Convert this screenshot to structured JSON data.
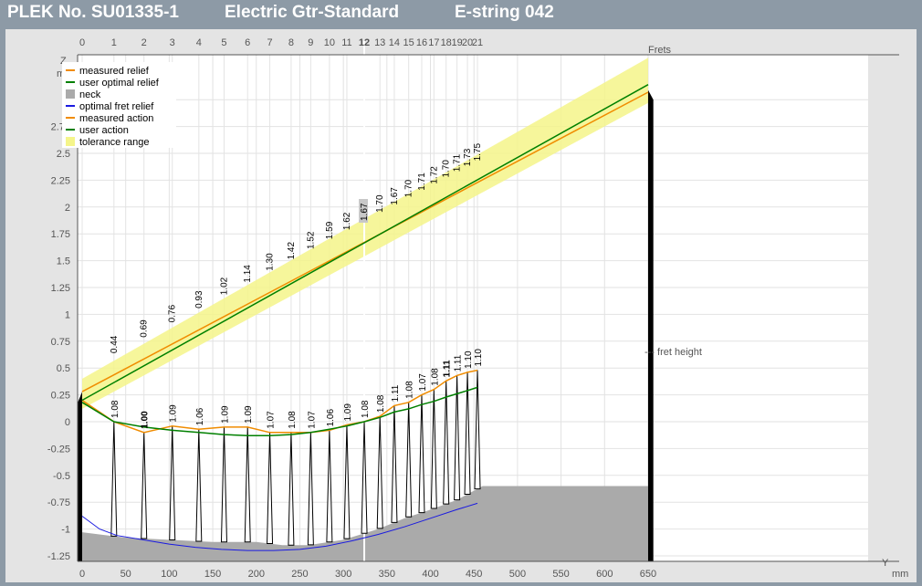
{
  "header": {
    "plek_no": "PLEK No. SU01335-1",
    "instrument": "Electric Gtr-Standard",
    "string": "E-string 042"
  },
  "chart_data": {
    "type": "line",
    "xlabel": "Y",
    "x_unit": "mm",
    "ylabel": "Z",
    "y_unit": "mm",
    "fret_axis_label": "Frets",
    "fret_height_note": "--- fret height",
    "xlim": [
      -10,
      660
    ],
    "ylim": [
      -1.3,
      3.5
    ],
    "x_ticks": [
      0,
      50,
      100,
      150,
      200,
      250,
      300,
      350,
      400,
      450,
      500,
      550,
      600,
      650
    ],
    "y_ticks": [
      -1.25,
      -1,
      -0.75,
      -0.5,
      -0.25,
      0,
      0.25,
      0.5,
      0.75,
      1,
      1.25,
      1.5,
      1.75,
      2,
      2.25,
      2.5,
      2.75,
      3
    ],
    "y_tick_labels": [
      "-1.25",
      "-1",
      "-0.75",
      "-0.5",
      "-0.25",
      "0",
      "0.25",
      "0.5",
      "0.75",
      "1",
      "1.25",
      "1.5",
      "1.75",
      "2",
      "2.25",
      "2.5",
      "2.75",
      "3"
    ],
    "highlight_fret": 12,
    "legend": [
      {
        "label": "measured relief",
        "color": "#f08c00",
        "kind": "line"
      },
      {
        "label": "user optimal relief",
        "color": "#008000",
        "kind": "line"
      },
      {
        "label": "neck",
        "color": "#aaaaaa",
        "kind": "box"
      },
      {
        "label": "optimal fret relief",
        "color": "#1a1ae0",
        "kind": "line"
      },
      {
        "label": "measured action",
        "color": "#f08c00",
        "kind": "line"
      },
      {
        "label": "user action",
        "color": "#008000",
        "kind": "line"
      },
      {
        "label": "tolerance range",
        "color": "#f5f58a",
        "kind": "box"
      }
    ],
    "frets": [
      {
        "fret": 0,
        "pos": 0,
        "relief": 0.2,
        "opt_relief": 0.18,
        "fret_height": "",
        "action": "",
        "bold": false
      },
      {
        "fret": 1,
        "pos": 36.5,
        "relief": 0.0,
        "opt_relief": 0.0,
        "fret_height": "1.08",
        "action": "0.44",
        "bold": false
      },
      {
        "fret": 2,
        "pos": 71,
        "relief": -0.1,
        "opt_relief": -0.05,
        "fret_height": "1.00",
        "action": "0.69",
        "bold": true
      },
      {
        "fret": 3,
        "pos": 103.5,
        "relief": -0.04,
        "opt_relief": -0.08,
        "fret_height": "1.09",
        "action": "0.76",
        "bold": false
      },
      {
        "fret": 4,
        "pos": 134,
        "relief": -0.07,
        "opt_relief": -0.1,
        "fret_height": "1.06",
        "action": "0.93",
        "bold": false
      },
      {
        "fret": 5,
        "pos": 163,
        "relief": -0.05,
        "opt_relief": -0.12,
        "fret_height": "1.09",
        "action": "1.02",
        "bold": false
      },
      {
        "fret": 6,
        "pos": 190,
        "relief": -0.05,
        "opt_relief": -0.13,
        "fret_height": "1.09",
        "action": "1.14",
        "bold": false
      },
      {
        "fret": 7,
        "pos": 215.5,
        "relief": -0.1,
        "opt_relief": -0.13,
        "fret_height": "1.07",
        "action": "1.30",
        "bold": false
      },
      {
        "fret": 8,
        "pos": 240,
        "relief": -0.1,
        "opt_relief": -0.12,
        "fret_height": "1.08",
        "action": "1.42",
        "bold": false
      },
      {
        "fret": 9,
        "pos": 262.5,
        "relief": -0.1,
        "opt_relief": -0.1,
        "fret_height": "1.07",
        "action": "1.52",
        "bold": false
      },
      {
        "fret": 10,
        "pos": 284,
        "relief": -0.08,
        "opt_relief": -0.07,
        "fret_height": "1.06",
        "action": "1.59",
        "bold": false
      },
      {
        "fret": 11,
        "pos": 304,
        "relief": -0.03,
        "opt_relief": -0.04,
        "fret_height": "1.09",
        "action": "1.62",
        "bold": false
      },
      {
        "fret": 12,
        "pos": 324,
        "relief": 0.0,
        "opt_relief": 0.0,
        "fret_height": "1.08",
        "action": "1.67",
        "bold": false
      },
      {
        "fret": 13,
        "pos": 342,
        "relief": 0.05,
        "opt_relief": 0.04,
        "fret_height": "1.08",
        "action": "1.70",
        "bold": false
      },
      {
        "fret": 14,
        "pos": 358.5,
        "relief": 0.15,
        "opt_relief": 0.09,
        "fret_height": "1.11",
        "action": "1.67",
        "bold": false
      },
      {
        "fret": 15,
        "pos": 375,
        "relief": 0.18,
        "opt_relief": 0.12,
        "fret_height": "1.08",
        "action": "1.70",
        "bold": false
      },
      {
        "fret": 16,
        "pos": 390,
        "relief": 0.25,
        "opt_relief": 0.16,
        "fret_height": "1.07",
        "action": "1.71",
        "bold": false
      },
      {
        "fret": 17,
        "pos": 404,
        "relief": 0.3,
        "opt_relief": 0.19,
        "fret_height": "1.08",
        "action": "1.72",
        "bold": false
      },
      {
        "fret": 18,
        "pos": 418,
        "relief": 0.38,
        "opt_relief": 0.23,
        "fret_height": "1.11",
        "action": "1.70",
        "bold": true
      },
      {
        "fret": 19,
        "pos": 430.5,
        "relief": 0.43,
        "opt_relief": 0.26,
        "fret_height": "1.11",
        "action": "1.71",
        "bold": false
      },
      {
        "fret": 20,
        "pos": 442.5,
        "relief": 0.46,
        "opt_relief": 0.29,
        "fret_height": "1.10",
        "action": "1.73",
        "bold": false
      },
      {
        "fret": 21,
        "pos": 454,
        "relief": 0.48,
        "opt_relief": 0.32,
        "fret_height": "1.10",
        "action": "1.75",
        "bold": false
      }
    ],
    "measured_action_line": {
      "x": [
        0,
        650
      ],
      "y": [
        0.28,
        3.07
      ]
    },
    "user_action_line": {
      "x": [
        0,
        650
      ],
      "y": [
        0.2,
        3.14
      ]
    },
    "tolerance_band": {
      "x": [
        0,
        650
      ],
      "lower": [
        0.12,
        2.97
      ],
      "upper": [
        0.4,
        3.39
      ]
    },
    "optimal_fret_relief": {
      "x": [
        0,
        20,
        40,
        70,
        100,
        130,
        160,
        190,
        220,
        250,
        280,
        310,
        340,
        370,
        400,
        430,
        454
      ],
      "y": [
        -0.88,
        -1.0,
        -1.06,
        -1.1,
        -1.14,
        -1.17,
        -1.19,
        -1.2,
        -1.2,
        -1.19,
        -1.16,
        -1.11,
        -1.05,
        -0.98,
        -0.9,
        -0.82,
        -0.76
      ]
    },
    "neck": {
      "x": [
        0,
        50,
        100,
        150,
        200,
        230,
        260,
        300,
        340,
        370,
        400,
        430,
        460,
        650
      ],
      "y": [
        -1.03,
        -1.08,
        -1.1,
        -1.12,
        -1.12,
        -1.15,
        -1.15,
        -1.1,
        -1.0,
        -0.9,
        -0.82,
        -0.73,
        -0.6,
        -0.6
      ]
    }
  }
}
